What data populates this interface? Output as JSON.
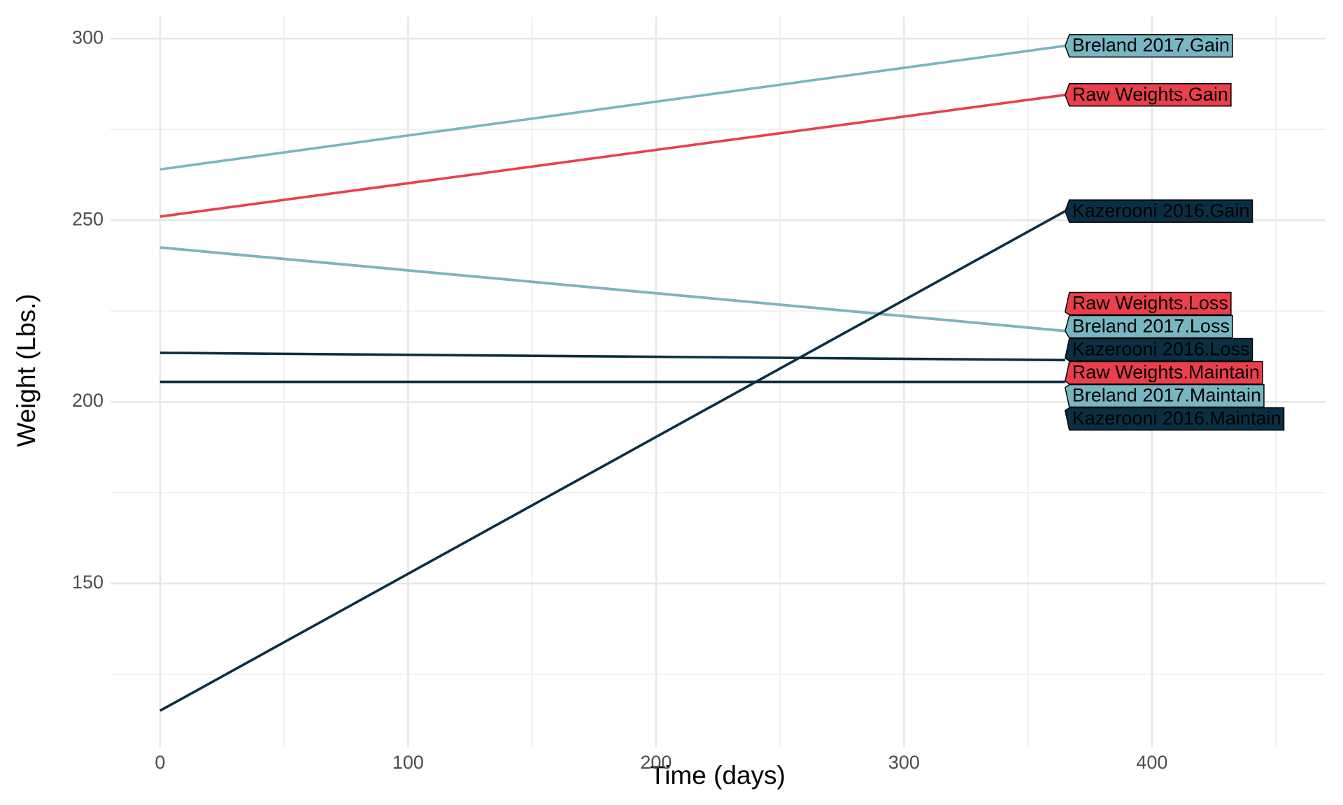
{
  "chart_data": {
    "type": "line",
    "x_label": "Time (days)",
    "y_label": "Weight (Lbs.)",
    "x": [
      0,
      365
    ],
    "series": [
      {
        "name": "Raw Weights.Gain",
        "color": "#eb3f4c",
        "values": [
          251,
          284.5
        ]
      },
      {
        "name": "Raw Weights.Loss",
        "color": "#eb3f4c",
        "values": [
          242.5,
          219.5
        ]
      },
      {
        "name": "Raw Weights.Maintain",
        "color": "#eb3f4c",
        "values": [
          205.5,
          205.5
        ]
      },
      {
        "name": "Breland 2017.Gain",
        "color": "#78b7c2",
        "values": [
          264,
          298
        ]
      },
      {
        "name": "Breland 2017.Loss",
        "color": "#78b7c2",
        "values": [
          242.5,
          219.5
        ]
      },
      {
        "name": "Breland 2017.Maintain",
        "color": "#78b7c2",
        "values": [
          205.5,
          205.5
        ]
      },
      {
        "name": "Kazerooni 2016.Gain",
        "color": "#0b2f42",
        "values": [
          115,
          252.5
        ]
      },
      {
        "name": "Kazerooni 2016.Loss",
        "color": "#0b2f42",
        "values": [
          213.5,
          211.5
        ]
      },
      {
        "name": "Kazerooni 2016.Maintain",
        "color": "#0b2f42",
        "values": [
          205.5,
          205.5
        ]
      }
    ],
    "xlim": [
      -20,
      470
    ],
    "ylim": [
      105,
      306
    ],
    "xticks": [
      0,
      100,
      200,
      300,
      400
    ],
    "yticks": [
      150,
      200,
      250,
      300
    ],
    "grid": true
  }
}
